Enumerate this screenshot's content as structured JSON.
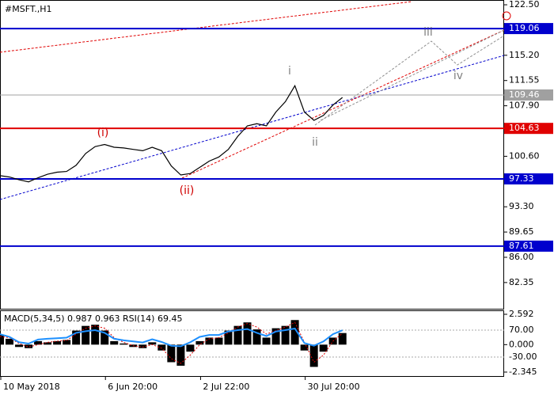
{
  "chart_data": {
    "type": "line",
    "title": "#MSFT.,H1",
    "categories": [
      "10 May 2018",
      null,
      null,
      null,
      null,
      null,
      null,
      null,
      null,
      null,
      null,
      "6 Jun 20:00",
      null,
      null,
      null,
      null,
      null,
      null,
      null,
      null,
      null,
      "2 Jul 22:00",
      null,
      null,
      null,
      null,
      null,
      null,
      null,
      null,
      null,
      null,
      "30 Jul 20:00",
      null,
      null,
      null,
      null
    ],
    "series": [
      {
        "name": "MSFT",
        "color": "#000000",
        "values": [
          97.8,
          97.6,
          97.2,
          96.9,
          97.5,
          98.0,
          98.3,
          98.4,
          99.3,
          101.0,
          102.0,
          102.3,
          101.9,
          101.8,
          101.6,
          101.4,
          101.9,
          101.4,
          99.2,
          97.9,
          98.1,
          99.0,
          99.9,
          100.5,
          101.6,
          103.5,
          105.0,
          105.3,
          105.0,
          107.0,
          108.5,
          110.8,
          107.0,
          105.8,
          106.5,
          108.0,
          109.1
        ]
      }
    ],
    "ylim": [
      78.56,
      123.19
    ],
    "yticks": [
      {
        "value": 122.5,
        "label": "122.50"
      },
      {
        "value": 115.2,
        "label": "115.20"
      },
      {
        "value": 111.55,
        "label": "111.55"
      },
      {
        "value": 107.9,
        "label": "107.90"
      },
      {
        "value": 100.6,
        "label": "100.60"
      },
      {
        "value": 93.3,
        "label": "93.30"
      },
      {
        "value": 89.65,
        "label": "89.65"
      },
      {
        "value": 86,
        "label": "86.00"
      },
      {
        "value": 82.35,
        "label": "82.35"
      }
    ],
    "levels": [
      {
        "value": 119.06,
        "color": "#0000cd"
      },
      {
        "value": 109.46,
        "color": "#a0a0a0"
      },
      {
        "value": 104.63,
        "color": "#e00000"
      },
      {
        "value": 97.33,
        "color": "#0000cd"
      },
      {
        "value": 87.61,
        "color": "#0000cd"
      }
    ],
    "annotations": [
      {
        "text": "(i)",
        "color": "#d00000"
      },
      {
        "text": "(ii)",
        "color": "#d00000"
      },
      {
        "text": "i",
        "color": "#808080"
      },
      {
        "text": "ii",
        "color": "#808080"
      },
      {
        "text": "iii",
        "color": "#808080"
      },
      {
        "text": "iv",
        "color": "#808080"
      }
    ],
    "indicator": {
      "label": "MACD(5,34,5) 0.987 0.963 RSI(14) 69.45",
      "ylim": [
        -2.75,
        2.93
      ],
      "yticks": [
        2.592,
        {
          "value": 0,
          "label": "0.000"
        },
        -2.345
      ],
      "y2lim": [
        -103.5,
        143.5
      ],
      "y2ticks": [
        {
          "value": 70,
          "label": "70.00"
        },
        {
          "value": -30,
          "label": "-30.00"
        }
      ],
      "series": [
        {
          "name": "MACD",
          "type": "bar",
          "color": "#000000",
          "values": [
            0.8,
            0.5,
            -0.2,
            -0.3,
            0.3,
            0.2,
            0.3,
            0.4,
            1.2,
            1.6,
            1.7,
            1.2,
            0.3,
            0.1,
            -0.2,
            -0.3,
            0.2,
            -0.5,
            -1.5,
            -1.8,
            -0.6,
            0.3,
            0.6,
            0.6,
            1.2,
            1.6,
            1.9,
            1.3,
            0.6,
            1.4,
            1.6,
            2.1,
            -0.5,
            -1.9,
            -0.6,
            0.6,
            0.99
          ]
        },
        {
          "name": "Signal",
          "type": "line",
          "color": "#e00000",
          "values": [
            0.7,
            0.6,
            0.1,
            -0.2,
            0.0,
            0.2,
            0.3,
            0.35,
            0.9,
            1.4,
            1.6,
            1.4,
            0.6,
            0.2,
            -0.1,
            -0.2,
            0.0,
            -0.3,
            -1.2,
            -1.6,
            -0.9,
            0.0,
            0.5,
            0.6,
            1.0,
            1.5,
            1.8,
            1.5,
            0.9,
            1.2,
            1.5,
            1.9,
            0.2,
            -1.5,
            -0.9,
            0.3,
            0.96
          ]
        },
        {
          "name": "RSI",
          "type": "line",
          "axis": "y2",
          "color": "#1e90ff",
          "values": [
            55,
            45,
            25,
            20,
            35,
            38,
            40,
            42,
            60,
            66,
            70,
            60,
            38,
            32,
            28,
            24,
            36,
            26,
            12,
            10,
            25,
            45,
            52,
            52,
            65,
            70,
            74,
            60,
            48,
            65,
            70,
            76,
            22,
            12,
            28,
            55,
            69.45
          ]
        }
      ]
    }
  }
}
